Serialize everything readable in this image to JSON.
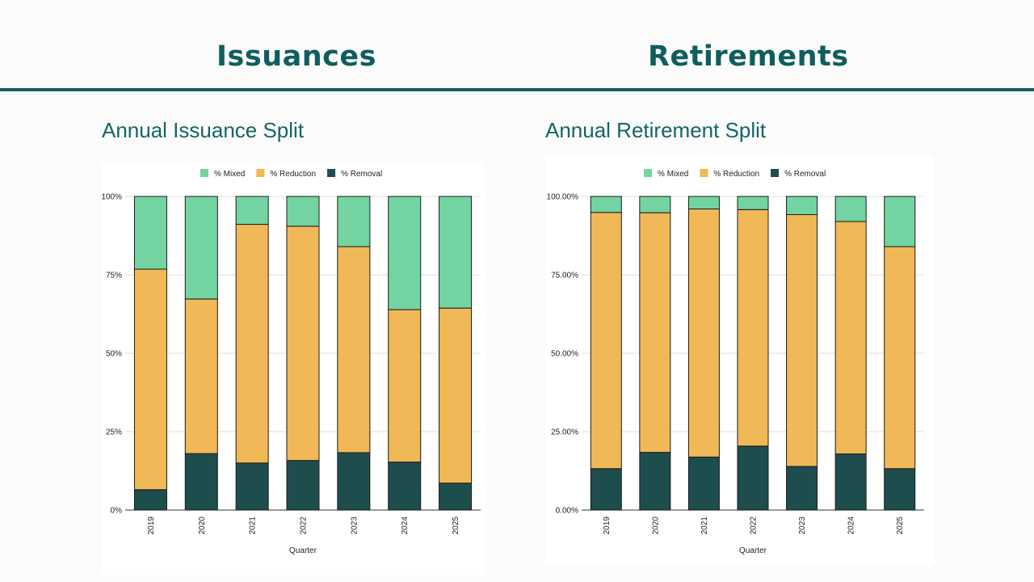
{
  "header": {
    "left_title": "Issuances",
    "right_title": "Retirements"
  },
  "colors": {
    "mixed": "#73d4a2",
    "reduction": "#f0b856",
    "removal": "#1e4d4e",
    "title_teal": "#0f5e5e",
    "divider": "#165f60"
  },
  "chart_data": [
    {
      "type": "bar",
      "stacked": true,
      "title": "Annual Issuance Split",
      "xlabel": "Quarter",
      "ylabel": "",
      "categories": [
        "2019",
        "2020",
        "2021",
        "2022",
        "2023",
        "2024",
        "2025"
      ],
      "series": [
        {
          "name": "% Removal",
          "values": [
            6.5,
            18,
            15,
            15.8,
            18.3,
            15.3,
            8.6
          ]
        },
        {
          "name": "% Reduction",
          "values": [
            70.3,
            49.3,
            76.1,
            74.7,
            65.7,
            48.6,
            55.8
          ]
        },
        {
          "name": "% Mixed",
          "values": [
            23.2,
            32.7,
            8.9,
            9.5,
            16,
            36.1,
            35.6
          ]
        }
      ],
      "legend_order": [
        "% Mixed",
        "% Reduction",
        "% Removal"
      ],
      "yticks": [
        "0%",
        "25%",
        "50%",
        "75%",
        "100%"
      ],
      "ylim": [
        0,
        100
      ],
      "legend": "top",
      "grid": true
    },
    {
      "type": "bar",
      "stacked": true,
      "title": "Annual Retirement Split",
      "xlabel": "Quarter",
      "ylabel": "",
      "categories": [
        "2019",
        "2020",
        "2021",
        "2022",
        "2023",
        "2024",
        "2025"
      ],
      "series": [
        {
          "name": "% Removal",
          "values": [
            13.2,
            18.4,
            16.9,
            20.4,
            13.9,
            17.9,
            13.2
          ]
        },
        {
          "name": "% Reduction",
          "values": [
            81.7,
            76.4,
            79.1,
            75.4,
            80.3,
            74.1,
            70.8
          ]
        },
        {
          "name": "% Mixed",
          "values": [
            5.1,
            5.2,
            4,
            4.2,
            5.8,
            8,
            16
          ]
        }
      ],
      "legend_order": [
        "% Mixed",
        "% Reduction",
        "% Removal"
      ],
      "yticks": [
        "0.00%",
        "25.00%",
        "50.00%",
        "75.00%",
        "100.00%"
      ],
      "ylim": [
        0,
        100
      ],
      "legend": "top",
      "grid": true
    }
  ]
}
